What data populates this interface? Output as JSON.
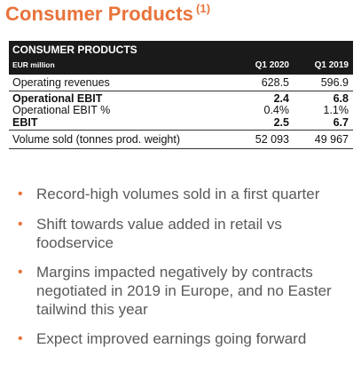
{
  "title": {
    "text": "Consumer Products",
    "footnote": "(1)"
  },
  "table": {
    "name": "CONSUMER PRODUCTS",
    "unit": "EUR million",
    "columns": [
      "Q1 2020",
      "Q1 2019"
    ],
    "rows": [
      {
        "label": "Operating revenues",
        "values": [
          "628.5",
          "596.9"
        ]
      },
      {
        "label": "Operational EBIT",
        "values": [
          "2.4",
          "6.8"
        ]
      },
      {
        "label": "Operational EBIT %",
        "values": [
          "0.4%",
          "1.1%"
        ]
      },
      {
        "label": "EBIT",
        "values": [
          "2.5",
          "6.7"
        ]
      },
      {
        "label": "Volume sold (tonnes prod. weight)",
        "values": [
          "52 093",
          "49 967"
        ]
      }
    ]
  },
  "bullets": [
    "Record-high volumes sold in a first quarter",
    "Shift towards value added in retail vs foodservice",
    "Margins impacted negatively by contracts negotiated in 2019 in Europe, and no Easter tailwind this year",
    "Expect improved earnings going forward"
  ],
  "bullet_symbol": "•",
  "colors": {
    "accent": "#e8733a",
    "header_bg": "#1a1a1a",
    "bullet_text": "#595959"
  }
}
